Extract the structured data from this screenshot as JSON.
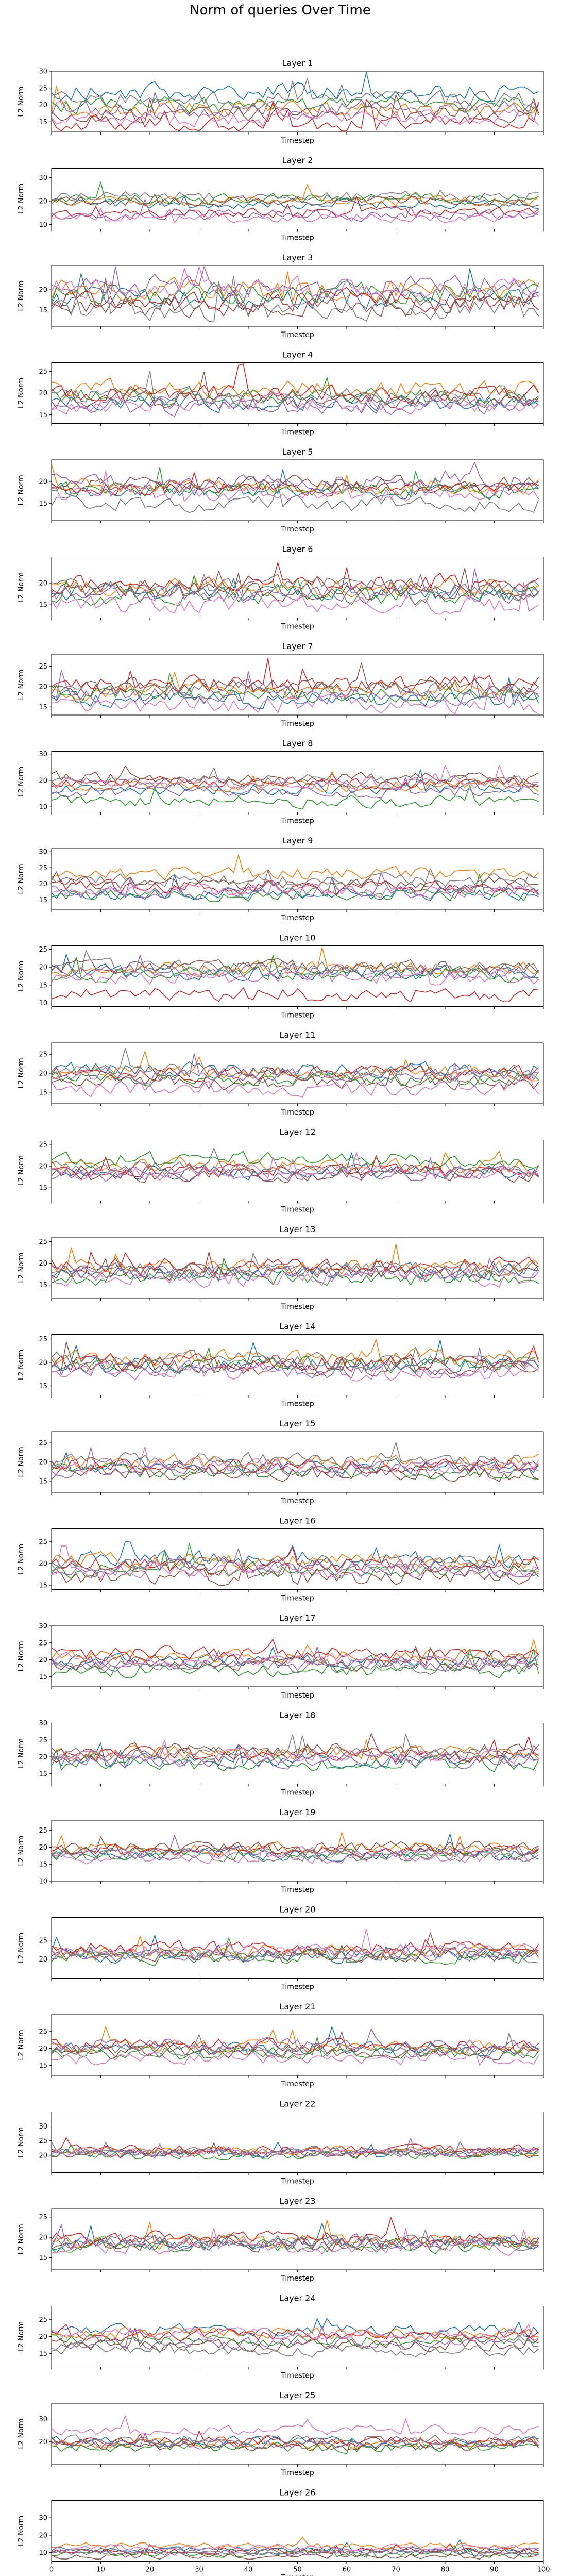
{
  "figure": {
    "suptitle": "Norm of queries Over Time"
  },
  "chart_data": {
    "type": "line",
    "layout": "26 vertically stacked subplots sharing the x axis (0 to 100); x tick labels shown only on the bottom subplot",
    "shared_x": {
      "xlim": [
        0,
        100
      ],
      "xticks": [
        0,
        10,
        20,
        30,
        40,
        50,
        60,
        70,
        80,
        90,
        100
      ],
      "xlabel": "Timestep"
    },
    "series_colors": [
      "#1f77b4",
      "#ff7f0e",
      "#2ca02c",
      "#d62728",
      "#9467bd",
      "#8c564b",
      "#e377c2",
      "#7f7f7f"
    ],
    "subplots": [
      {
        "title": "Layer 1",
        "ylabel": "L2 Norm",
        "ylim": [
          12,
          30
        ],
        "yticks": [
          15,
          20,
          25,
          30
        ],
        "levels": [
          24,
          18.5,
          20,
          14.5,
          19,
          17,
          16,
          21.5
        ],
        "amp": 2.2
      },
      {
        "title": "Layer 2",
        "ylabel": "L2 Norm",
        "ylim": [
          8,
          34
        ],
        "yticks": [
          10,
          20,
          30
        ],
        "levels": [
          19,
          20,
          21,
          15,
          14,
          20,
          13,
          22
        ],
        "amp": 2.0
      },
      {
        "title": "Layer 3",
        "ylabel": "L2 Norm",
        "ylim": [
          11,
          26
        ],
        "yticks": [
          15,
          20
        ],
        "levels": [
          18,
          20,
          19,
          17.5,
          21,
          16,
          20.5,
          15
        ],
        "amp": 2.4
      },
      {
        "title": "Layer 4",
        "ylabel": "L2 Norm",
        "ylim": [
          13,
          27
        ],
        "yticks": [
          15,
          20,
          25
        ],
        "levels": [
          18,
          21,
          19,
          20,
          17,
          18.5,
          17.5,
          19.5
        ],
        "amp": 1.8
      },
      {
        "title": "Layer 5",
        "ylabel": "L2 Norm",
        "ylim": [
          11,
          25
        ],
        "yticks": [
          15,
          20
        ],
        "levels": [
          18,
          19,
          18,
          18.5,
          20,
          19.5,
          17,
          15
        ],
        "amp": 1.6
      },
      {
        "title": "Layer 6",
        "ylabel": "L2 Norm",
        "ylim": [
          12,
          26
        ],
        "yticks": [
          15,
          20
        ],
        "levels": [
          18,
          19,
          17,
          20,
          17.5,
          18,
          15,
          19.5
        ],
        "amp": 1.8
      },
      {
        "title": "Layer 7",
        "ylabel": "L2 Norm",
        "ylim": [
          13,
          28
        ],
        "yticks": [
          15,
          20,
          25
        ],
        "levels": [
          17,
          19,
          18,
          20.5,
          18,
          20,
          15.5,
          19
        ],
        "amp": 1.9
      },
      {
        "title": "Layer 8",
        "ylabel": "L2 Norm",
        "ylim": [
          8,
          31
        ],
        "yticks": [
          10,
          20,
          30
        ],
        "levels": [
          17,
          18,
          12,
          19,
          16,
          21,
          19,
          20
        ],
        "amp": 2.0
      },
      {
        "title": "Layer 9",
        "ylabel": "L2 Norm",
        "ylim": [
          12,
          31
        ],
        "yticks": [
          15,
          20,
          25,
          30
        ],
        "levels": [
          17,
          23,
          16.5,
          19,
          17.5,
          20,
          18,
          21
        ],
        "amp": 1.8
      },
      {
        "title": "Layer 10",
        "ylabel": "L2 Norm",
        "ylim": [
          9,
          26
        ],
        "yticks": [
          10,
          15,
          20,
          25
        ],
        "levels": [
          18.5,
          19.5,
          18,
          12.5,
          18.5,
          20,
          17,
          20
        ],
        "amp": 1.8
      },
      {
        "title": "Layer 11",
        "ylabel": "L2 Norm",
        "ylim": [
          12,
          28
        ],
        "yticks": [
          15,
          20,
          25
        ],
        "levels": [
          21,
          20,
          18.5,
          20,
          19.5,
          17.5,
          16,
          20.5
        ],
        "amp": 1.7
      },
      {
        "title": "Layer 12",
        "ylabel": "L2 Norm",
        "ylim": [
          12,
          26
        ],
        "yticks": [
          15,
          20,
          25
        ],
        "levels": [
          18.5,
          20,
          21.5,
          19,
          18,
          18,
          18.5,
          19.5
        ],
        "amp": 1.5
      },
      {
        "title": "Layer 13",
        "ylabel": "L2 Norm",
        "ylim": [
          12,
          26
        ],
        "yticks": [
          15,
          20,
          25
        ],
        "levels": [
          18,
          19,
          16.5,
          19.5,
          18,
          18,
          16.5,
          18.5
        ],
        "amp": 1.6
      },
      {
        "title": "Layer 14",
        "ylabel": "L2 Norm",
        "ylim": [
          13,
          26
        ],
        "yticks": [
          15,
          20,
          25
        ],
        "levels": [
          19.5,
          21,
          19.5,
          20,
          18.5,
          19,
          18,
          20.5
        ],
        "amp": 1.6
      },
      {
        "title": "Layer 15",
        "ylabel": "L2 Norm",
        "ylim": [
          12,
          28
        ],
        "yticks": [
          15,
          20,
          25
        ],
        "levels": [
          19,
          20,
          17.5,
          19,
          18,
          17,
          19,
          20.5
        ],
        "amp": 1.7
      },
      {
        "title": "Layer 16",
        "ylabel": "L2 Norm",
        "ylim": [
          14,
          28
        ],
        "yticks": [
          15,
          20,
          25
        ],
        "levels": [
          21,
          20.5,
          18.5,
          19.5,
          19,
          17,
          18.5,
          20
        ],
        "amp": 1.7
      },
      {
        "title": "Layer 17",
        "ylabel": "L2 Norm",
        "ylim": [
          12,
          30
        ],
        "yticks": [
          15,
          20,
          25,
          30
        ],
        "levels": [
          20,
          21,
          17,
          22,
          18.5,
          19,
          20,
          18
        ],
        "amp": 1.8
      },
      {
        "title": "Layer 18",
        "ylabel": "L2 Norm",
        "ylim": [
          12,
          30
        ],
        "yticks": [
          15,
          20,
          25,
          30
        ],
        "levels": [
          19,
          21,
          18,
          20.5,
          19,
          22,
          20,
          21
        ],
        "amp": 1.9
      },
      {
        "title": "Layer 19",
        "ylabel": "L2 Norm",
        "ylim": [
          10,
          28
        ],
        "yticks": [
          10,
          15,
          20,
          25
        ],
        "levels": [
          18,
          19.5,
          18,
          19,
          18.5,
          20,
          17,
          17.5
        ],
        "amp": 1.6
      },
      {
        "title": "Layer 20",
        "ylabel": "L2 Norm",
        "ylim": [
          15,
          31
        ],
        "yticks": [
          20,
          25
        ],
        "levels": [
          21,
          22,
          20.5,
          23,
          21.5,
          21,
          22.5,
          21
        ],
        "amp": 1.6
      },
      {
        "title": "Layer 21",
        "ylabel": "L2 Norm",
        "ylim": [
          12,
          30
        ],
        "yticks": [
          15,
          20,
          25
        ],
        "levels": [
          20,
          20.5,
          18.5,
          21,
          21,
          19,
          17,
          19
        ],
        "amp": 1.7
      },
      {
        "title": "Layer 22",
        "ylabel": "L2 Norm",
        "ylim": [
          14,
          35
        ],
        "yticks": [
          20,
          25,
          30
        ],
        "levels": [
          21,
          21.5,
          20,
          22,
          21,
          20.5,
          21,
          21.5
        ],
        "amp": 1.4
      },
      {
        "title": "Layer 23",
        "ylabel": "L2 Norm",
        "ylim": [
          12,
          27
        ],
        "yticks": [
          15,
          20,
          25
        ],
        "levels": [
          18.5,
          19,
          18,
          19.5,
          19,
          18.5,
          17.5,
          19
        ],
        "amp": 1.6
      },
      {
        "title": "Layer 24",
        "ylabel": "L2 Norm",
        "ylim": [
          11,
          29
        ],
        "yticks": [
          15,
          20,
          25
        ],
        "levels": [
          22,
          21,
          19,
          20.5,
          18,
          17.5,
          20.5,
          16
        ],
        "amp": 1.6
      },
      {
        "title": "Layer 25",
        "ylabel": "L2 Norm",
        "ylim": [
          10,
          37
        ],
        "yticks": [
          20,
          30
        ],
        "levels": [
          20,
          19,
          17.5,
          20,
          19,
          18,
          25,
          21
        ],
        "amp": 2.0
      },
      {
        "title": "Layer 26",
        "ylabel": "L2 Norm",
        "ylim": [
          5,
          40
        ],
        "yticks": [
          10,
          20,
          30
        ],
        "levels": [
          12,
          14,
          9,
          11,
          10,
          8,
          13,
          11
        ],
        "amp": 1.6
      }
    ]
  }
}
